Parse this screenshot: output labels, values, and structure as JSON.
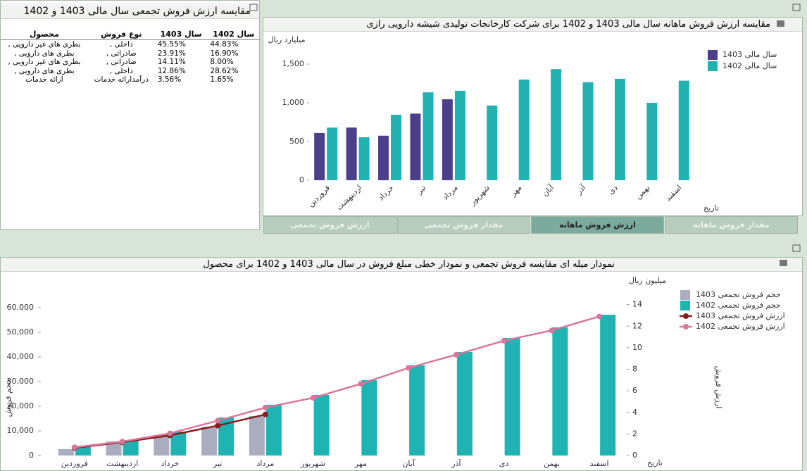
{
  "table": {
    "title": "مقایسه ارزش فروش تجمعی سال مالی 1403 و 1402",
    "headers": [
      "سال 1402",
      "سال 1403",
      "نوع فروش",
      "محصول"
    ],
    "rows": [
      [
        "44.83%",
        "45.55%",
        "داخلی ,",
        "بطری های غیر دارویی ,"
      ],
      [
        "16.90%",
        "23.91%",
        "صادراتی ,",
        "بطری های دارویی ,"
      ],
      [
        "8.00%",
        "14.11%",
        "صادراتی ,",
        "بطری های غیر دارویی ,"
      ],
      [
        "28.62%",
        "12.86%",
        "داخلی ,",
        "بطری های دارویی ,"
      ],
      [
        "1.65%",
        "3.56%",
        "درآمدارائه خدمات",
        "ارائه خدمات"
      ]
    ]
  },
  "tabs": [
    "مقدار فروش ماهانه",
    "ارزش فروش ماهانه",
    "مقدار فروش تجمعی",
    "ارزش فروش تجمعی"
  ],
  "active_tab": 1,
  "chart_data": [
    {
      "type": "bar",
      "title": "مقایسه ارزش فروش ماهانه سال مالی 1403 و 1402 برای شرکت کارخانجات تولیدی شیشه دارویی رازی",
      "ylabel": "میلیارد ریال",
      "xlabel": "تاریخ",
      "categories": [
        "فروردین",
        "اردیبهشت",
        "خرداد",
        "تیر",
        "مرداد",
        "شهریور",
        "مهر",
        "آبان",
        "آذر",
        "دی",
        "بهمن",
        "اسفند"
      ],
      "series": [
        {
          "name": "سال مالی 1403",
          "color": "#4b3f8c",
          "values": [
            610,
            680,
            575,
            860,
            1045,
            null,
            null,
            null,
            null,
            null,
            null,
            null
          ]
        },
        {
          "name": "سال مالی 1402",
          "color": "#22b0b0",
          "values": [
            680,
            555,
            845,
            1135,
            1155,
            965,
            1300,
            1435,
            1265,
            1310,
            1000,
            1285
          ]
        }
      ],
      "ylim": [
        0,
        1700
      ],
      "yticks": [
        0,
        500,
        {
          "value": 1000,
          "label": "1,000"
        },
        {
          "value": 1500,
          "label": "1,500"
        }
      ],
      "grid": false,
      "legend": "right"
    },
    {
      "type": "combo",
      "title": "نمودار میله ای مقایسه فروش تجمعی و نمودار خطی مبلغ فروش در سال مالی 1403 و 1402 برای محصول",
      "ylabel": "حجم فروش",
      "y2unit": "میلیون ریال",
      "y2label": "ارزش فروش",
      "xlabel": "تاریخ",
      "categories": [
        "فروردین",
        "اردیبهشت",
        "خرداد",
        "تیر",
        "مرداد",
        "شهریور",
        "مهر",
        "آبان",
        "آذر",
        "دی",
        "بهمن",
        "اسفند"
      ],
      "series": [
        {
          "name": "حجم فروش تجمعی 1403",
          "type": "bar",
          "color": "#a9adbf",
          "values": [
            2600,
            5700,
            8300,
            11700,
            16000,
            null,
            null,
            null,
            null,
            null,
            null,
            null
          ]
        },
        {
          "name": "حجم فروش تجمعی 1402",
          "type": "bar",
          "color": "#1fb3b3",
          "values": [
            3700,
            6300,
            9700,
            15400,
            20600,
            24600,
            30600,
            36600,
            42000,
            47700,
            52000,
            57100
          ]
        },
        {
          "name": "ارزش فروش تجمعی 1403",
          "type": "line",
          "axis": "y2",
          "color": "#8b1a1a",
          "values": [
            0.71,
            1.23,
            1.87,
            2.77,
            3.81,
            null,
            null,
            null,
            null,
            null,
            null,
            null
          ]
        },
        {
          "name": "ارزش فروش تجمعی 1402",
          "type": "line",
          "axis": "y2",
          "color": "#d9779a",
          "values": [
            0.77,
            1.29,
            2.06,
            3.23,
            4.45,
            5.35,
            6.65,
            8.13,
            9.35,
            10.65,
            11.6,
            12.9
          ]
        }
      ],
      "ylim": [
        0,
        70000
      ],
      "yticks": [
        0,
        {
          "value": 10000,
          "label": "10,000"
        },
        {
          "value": 20000,
          "label": "20,000"
        },
        {
          "value": 30000,
          "label": "30,000"
        },
        {
          "value": 40000,
          "label": "40,000"
        },
        {
          "value": 50000,
          "label": "50,000"
        },
        {
          "value": 60000,
          "label": "60,000"
        }
      ],
      "y2lim": [
        0,
        16
      ],
      "y2ticks": [
        0,
        2,
        4,
        6,
        8,
        10,
        12,
        14
      ],
      "grid": false,
      "legend": "right"
    }
  ]
}
